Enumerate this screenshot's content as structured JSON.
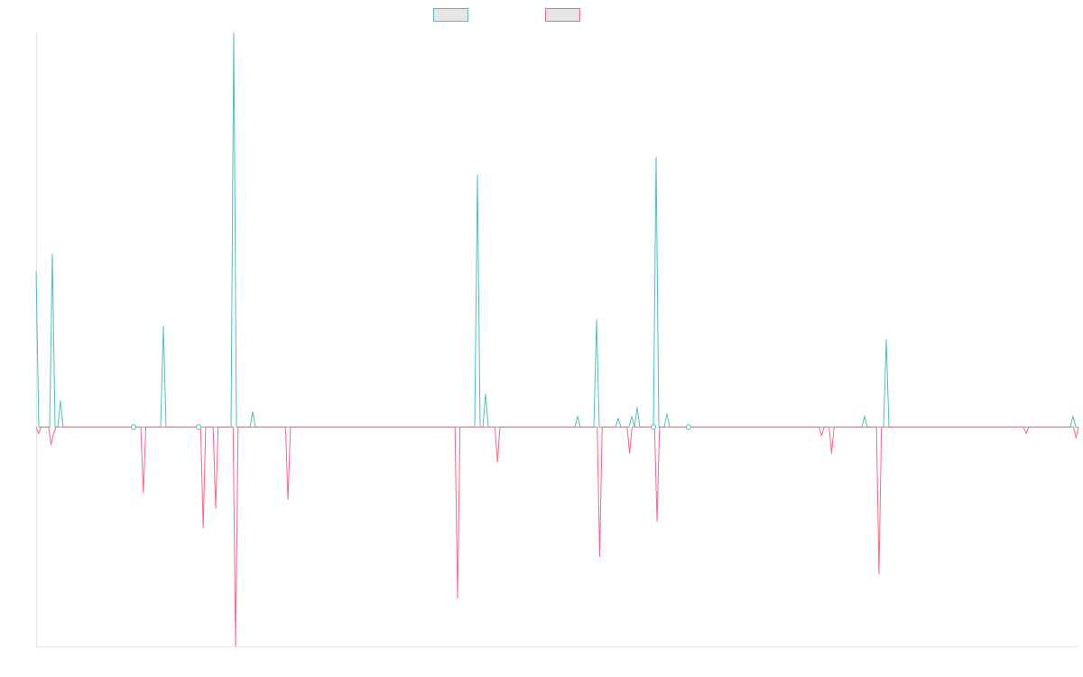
{
  "chart_data": {
    "type": "line",
    "title": "",
    "xlabel": "",
    "ylabel": "",
    "ylim": [
      -100,
      180
    ],
    "grid": false,
    "legend_position": "top-center",
    "series": [
      {
        "color": "#4bc0c0",
        "values": [
          71,
          0,
          0,
          0,
          0,
          0,
          79,
          0,
          0,
          12,
          0,
          0,
          0,
          0,
          0,
          0,
          0,
          0,
          0,
          0,
          0,
          0,
          0,
          0,
          0,
          0,
          0,
          0,
          0,
          0,
          0,
          0,
          0,
          0,
          0,
          0,
          0,
          0,
          0,
          0,
          0,
          0,
          0,
          0,
          0,
          0,
          0,
          46,
          0,
          0,
          0,
          0,
          0,
          0,
          0,
          0,
          0,
          0,
          0,
          0,
          0,
          0,
          0,
          0,
          0,
          0,
          0,
          0,
          0,
          0,
          0,
          0,
          0,
          180,
          0,
          0,
          0,
          0,
          0,
          0,
          7,
          0,
          0,
          0,
          0,
          0,
          0,
          0,
          0,
          0,
          0,
          0,
          0,
          0,
          0,
          0,
          0,
          0,
          0,
          0,
          0,
          0,
          0,
          0,
          0,
          0,
          0,
          0,
          0,
          0,
          0,
          0,
          0,
          0,
          0,
          0,
          0,
          0,
          0,
          0,
          0,
          0,
          0,
          0,
          0,
          0,
          0,
          0,
          0,
          0,
          0,
          0,
          0,
          0,
          0,
          0,
          0,
          0,
          0,
          0,
          0,
          0,
          0,
          0,
          0,
          0,
          0,
          0,
          0,
          0,
          0,
          0,
          0,
          0,
          0,
          0,
          0,
          0,
          0,
          0,
          0,
          0,
          0,
          115,
          0,
          0,
          15,
          0,
          0,
          0,
          0,
          0,
          0,
          0,
          0,
          0,
          0,
          0,
          0,
          0,
          0,
          0,
          0,
          0,
          0,
          0,
          0,
          0,
          0,
          0,
          0,
          0,
          0,
          0,
          0,
          0,
          0,
          0,
          0,
          0,
          5,
          0,
          0,
          0,
          0,
          0,
          0,
          49,
          0,
          0,
          0,
          0,
          0,
          0,
          0,
          4,
          0,
          0,
          0,
          0,
          5,
          0,
          9,
          0,
          0,
          0,
          0,
          0,
          0,
          123,
          0,
          0,
          0,
          6,
          0,
          0,
          0,
          0,
          0,
          0,
          0,
          0,
          0,
          0,
          0,
          0,
          0,
          0,
          0,
          0,
          0,
          0,
          0,
          0,
          0,
          0,
          0,
          0,
          0,
          0,
          0,
          0,
          0,
          0,
          0,
          0,
          0,
          0,
          0,
          0,
          0,
          0,
          0,
          0,
          0,
          0,
          0,
          0,
          0,
          0,
          0,
          0,
          0,
          0,
          0,
          0,
          0,
          0,
          0,
          0,
          0,
          0,
          0,
          0,
          0,
          0,
          0,
          0,
          0,
          0,
          0,
          0,
          0,
          0,
          0,
          0,
          5,
          0,
          0,
          0,
          0,
          0,
          0,
          0,
          40,
          0,
          0,
          0,
          0,
          0,
          0,
          0,
          0,
          0,
          0,
          0,
          0,
          0,
          0,
          0,
          0,
          0,
          0,
          0,
          0,
          0,
          0,
          0,
          0,
          0,
          0,
          0,
          0,
          0,
          0,
          0,
          0,
          0,
          0,
          0,
          0,
          0,
          0,
          0,
          0,
          0,
          0,
          0,
          0,
          0,
          0,
          0,
          0,
          0,
          0,
          0,
          0,
          0,
          0,
          0,
          0,
          0,
          0,
          0,
          0,
          0,
          0,
          0,
          0,
          0,
          0,
          0,
          0,
          5,
          0,
          0
        ]
      },
      {
        "color": "#ff6384",
        "values": [
          0,
          -3,
          0,
          0,
          0,
          0,
          -8,
          -3,
          0,
          0,
          0,
          0,
          0,
          0,
          0,
          0,
          0,
          0,
          0,
          0,
          0,
          0,
          0,
          0,
          0,
          0,
          0,
          0,
          0,
          0,
          0,
          0,
          0,
          0,
          0,
          0,
          0,
          0,
          0,
          0,
          0,
          0,
          0,
          -30,
          0,
          0,
          0,
          0,
          0,
          0,
          0,
          0,
          0,
          0,
          0,
          0,
          0,
          0,
          0,
          0,
          0,
          0,
          0,
          0,
          0,
          0,
          0,
          -46,
          0,
          0,
          0,
          0,
          -37,
          0,
          0,
          0,
          0,
          0,
          0,
          0,
          -100,
          0,
          0,
          0,
          0,
          0,
          0,
          0,
          0,
          0,
          0,
          0,
          0,
          0,
          0,
          0,
          0,
          0,
          0,
          0,
          0,
          -33,
          0,
          0,
          0,
          0,
          0,
          0,
          0,
          0,
          0,
          0,
          0,
          0,
          0,
          0,
          0,
          0,
          0,
          0,
          0,
          0,
          0,
          0,
          0,
          0,
          0,
          0,
          0,
          0,
          0,
          0,
          0,
          0,
          0,
          0,
          0,
          0,
          0,
          0,
          0,
          0,
          0,
          0,
          0,
          0,
          0,
          0,
          0,
          0,
          0,
          0,
          0,
          0,
          0,
          0,
          0,
          0,
          0,
          0,
          0,
          0,
          0,
          0,
          0,
          0,
          0,
          0,
          0,
          -78,
          0,
          0,
          0,
          0,
          0,
          0,
          0,
          0,
          0,
          0,
          0,
          0,
          0,
          0,
          0,
          -16,
          0,
          0,
          0,
          0,
          0,
          0,
          0,
          0,
          0,
          0,
          0,
          0,
          0,
          0,
          0,
          0,
          0,
          0,
          0,
          0,
          0,
          0,
          0,
          0,
          0,
          0,
          0,
          0,
          0,
          0,
          0,
          0,
          0,
          0,
          0,
          0,
          0,
          0,
          0,
          0,
          -59,
          0,
          0,
          0,
          0,
          0,
          0,
          0,
          0,
          0,
          0,
          0,
          -12,
          0,
          0,
          0,
          0,
          0,
          0,
          0,
          0,
          0,
          0,
          -43,
          0,
          0,
          0,
          0,
          0,
          0,
          0,
          0,
          0,
          0,
          0,
          0,
          0,
          0,
          0,
          0,
          0,
          0,
          0,
          0,
          0,
          0,
          0,
          0,
          0,
          0,
          0,
          0,
          0,
          0,
          0,
          0,
          0,
          0,
          0,
          0,
          0,
          0,
          0,
          0,
          0,
          0,
          0,
          0,
          0,
          0,
          0,
          0,
          0,
          0,
          0,
          0,
          0,
          0,
          0,
          0,
          0,
          0,
          0,
          0,
          0,
          0,
          0,
          0,
          0,
          -4,
          0,
          0,
          0,
          -12,
          0,
          0,
          0,
          0,
          0,
          0,
          0,
          0,
          0,
          0,
          0,
          0,
          0,
          0,
          0,
          0,
          0,
          0,
          -67,
          0,
          0,
          0,
          0,
          0,
          0,
          0,
          0,
          0,
          0,
          0,
          0,
          0,
          0,
          0,
          0,
          0,
          0,
          0,
          0,
          0,
          0,
          0,
          0,
          0,
          0,
          0,
          0,
          0,
          0,
          0,
          0,
          0,
          0,
          0,
          0,
          0,
          0,
          0,
          0,
          0,
          0,
          0,
          0,
          0,
          0,
          0,
          0,
          0,
          0,
          0,
          0,
          0,
          0,
          0,
          0,
          0,
          0,
          -3,
          0,
          0,
          0,
          0,
          0,
          0,
          0,
          0,
          0,
          0,
          0,
          0,
          0,
          0,
          0,
          0,
          0,
          0,
          0,
          -5,
          0
        ]
      }
    ]
  }
}
